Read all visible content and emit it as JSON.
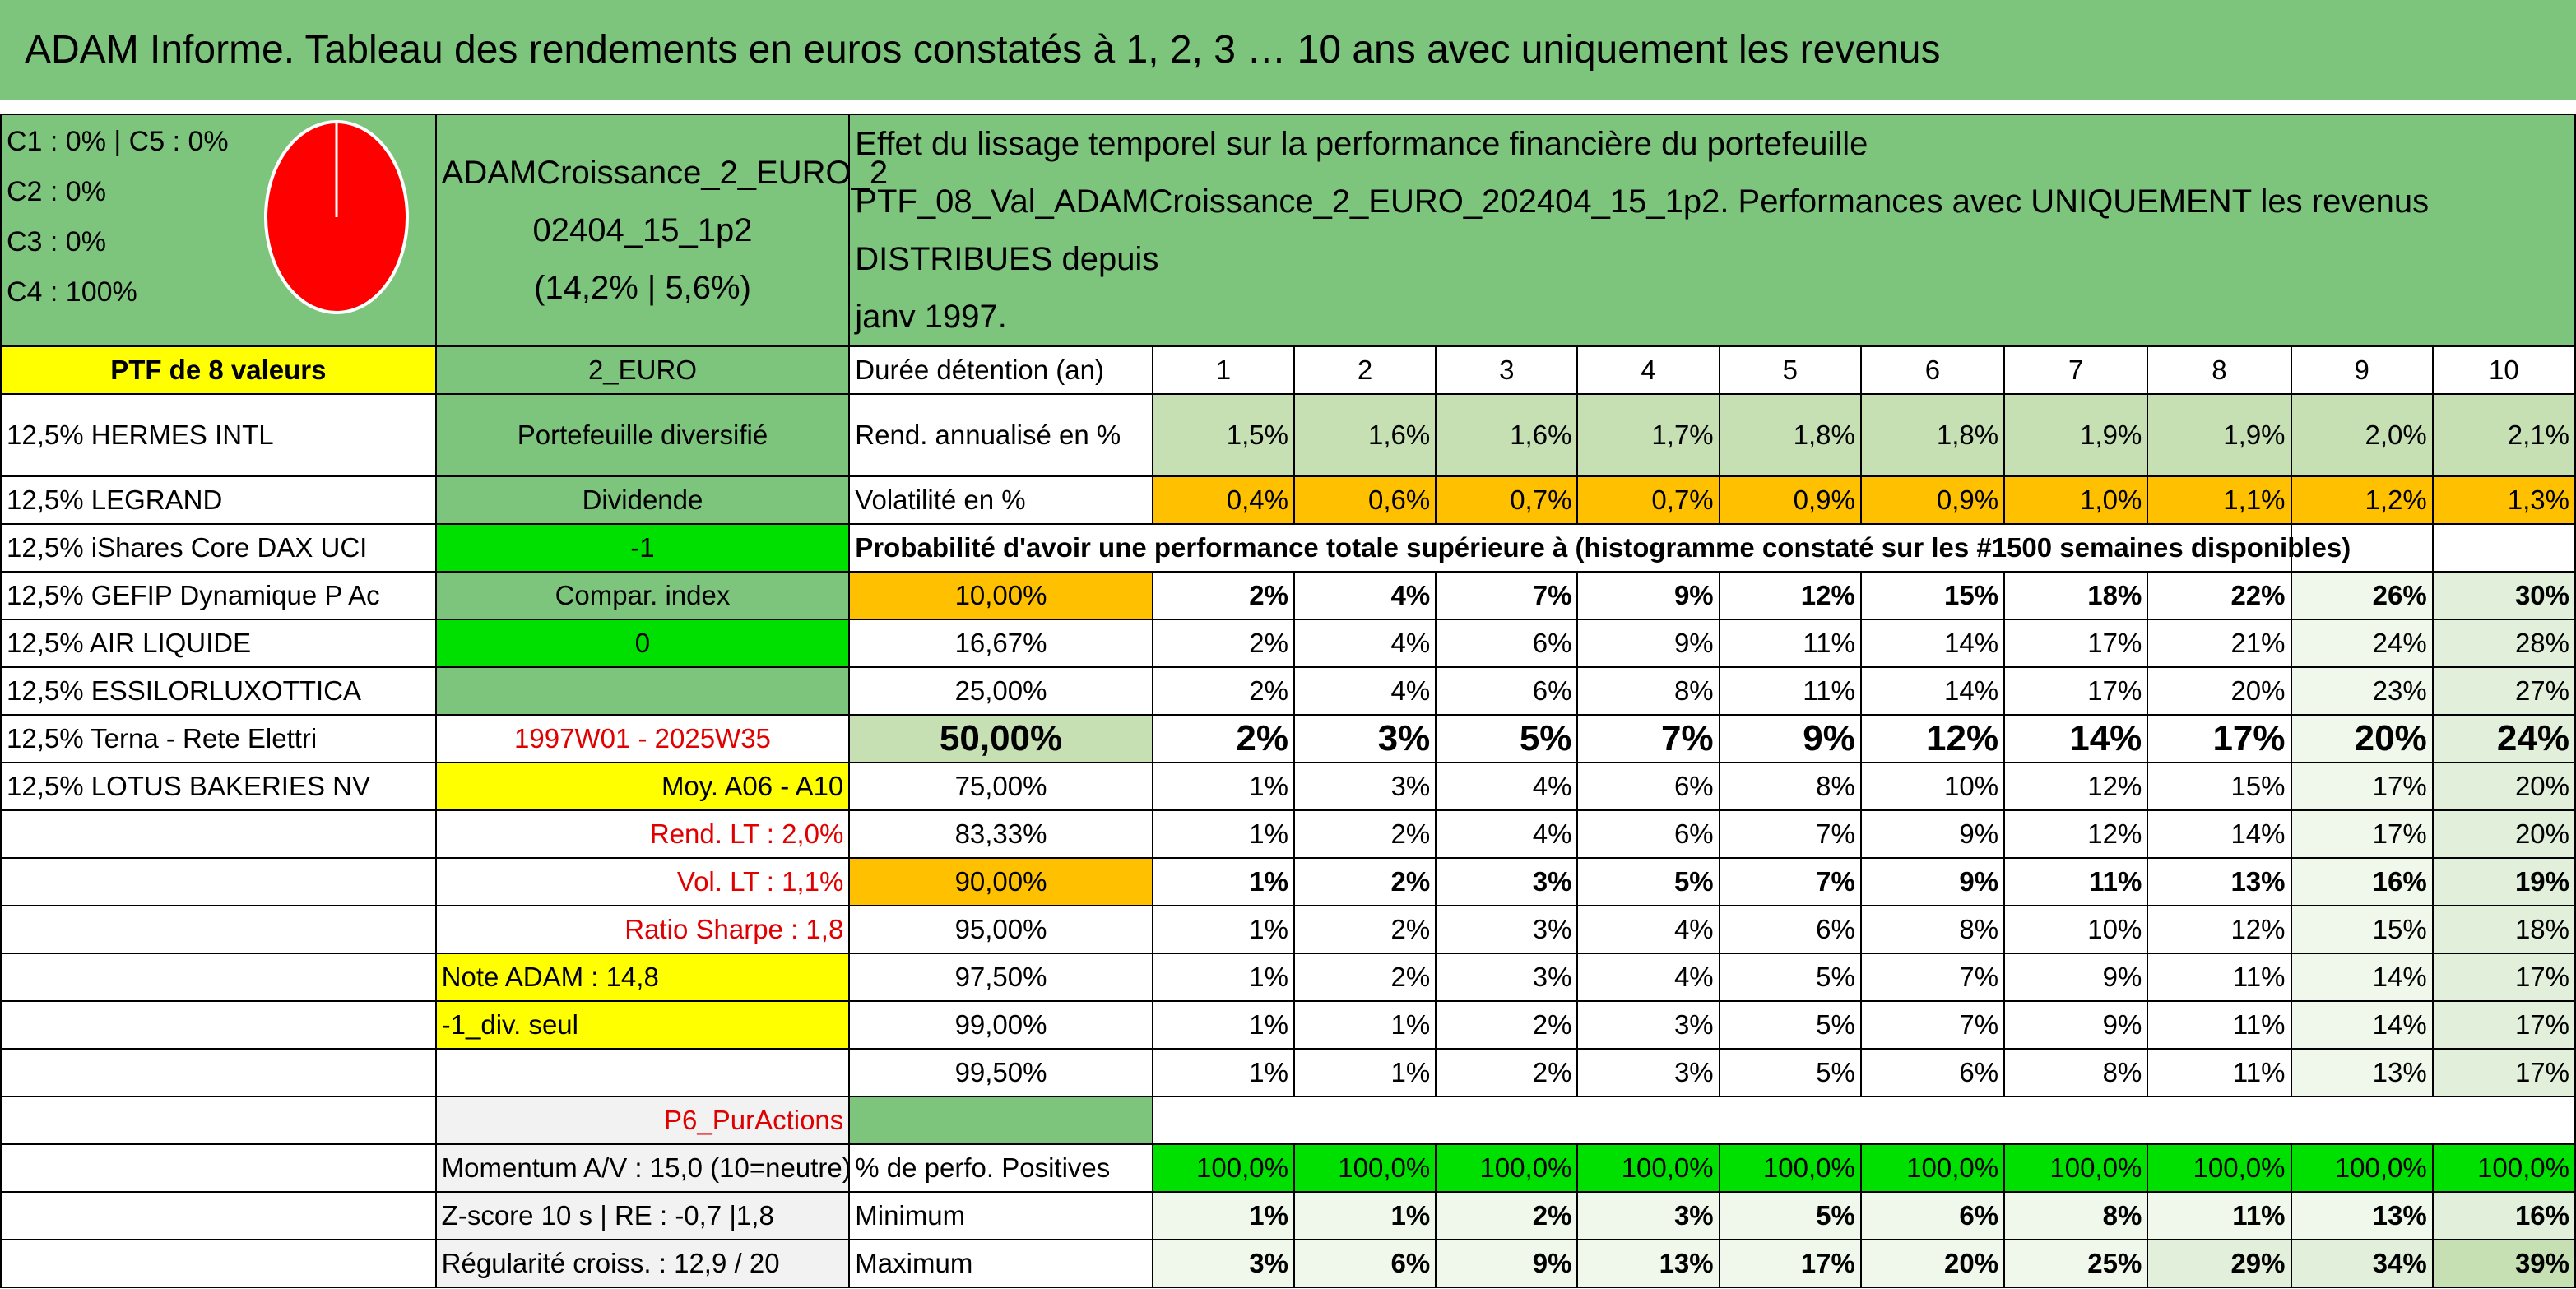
{
  "title": "ADAM Informe. Tableau des rendements en euros constatés à 1, 2, 3 … 10 ans avec uniquement les revenus",
  "allocation": {
    "lines": [
      "C1 : 0% | C5 : 0%",
      "C2 : 0%",
      "C3 : 0%",
      "C4 : 100%"
    ],
    "pie_colors": {
      "C4": "#ff0000"
    }
  },
  "fund": {
    "name_line1": "ADAMCroissance_2_EURO_2",
    "name_line2": "02404_15_1p2",
    "name_line3": "(14,2% | 5,6%)"
  },
  "description": {
    "line1": "Effet du lissage temporel sur la performance financière du portefeuille",
    "line2": "PTF_08_Val_ADAMCroissance_2_EURO_202404_15_1p2. Performances avec UNIQUEMENT les revenus DISTRIBUES depuis",
    "line3": "janv 1997."
  },
  "left_col": [
    "PTF de 8 valeurs",
    "12,5% HERMES INTL",
    "12,5% LEGRAND",
    "12,5% iShares Core DAX UCI",
    "12,5% GEFIP Dynamique P Ac",
    "12,5% AIR LIQUIDE",
    "12,5% ESSILORLUXOTTICA",
    "12,5% Terna - Rete Elettri",
    "12,5% LOTUS BAKERIES NV"
  ],
  "mid_col": {
    "currency": "2_EURO",
    "type": "Portefeuille diversifié",
    "dividende": "Dividende",
    "val1": "-1",
    "compar": "Compar. index",
    "val2": "0",
    "period": "1997W01 - 2025W35",
    "moy": "Moy. A06 - A10",
    "rend_lt": "Rend. LT : 2,0%",
    "vol_lt": "Vol. LT : 1,1%",
    "sharpe": "Ratio Sharpe : 1,8",
    "note": "Note ADAM : 14,8",
    "div_seul": "-1_div. seul",
    "pur": "P6_PurActions",
    "momentum": "Momentum A/V : 15,0 (10=neutre)",
    "zscore": "Z-score 10 s | RE : -0,7 |1,8",
    "regularite": "Régularité croiss. : 12,9 / 20"
  },
  "table": {
    "duree_label": "Durée détention (an)",
    "years": [
      "1",
      "2",
      "3",
      "4",
      "5",
      "6",
      "7",
      "8",
      "9",
      "10"
    ],
    "rend_label": "Rend. annualisé en %",
    "rend": [
      "1,5%",
      "1,6%",
      "1,6%",
      "1,7%",
      "1,8%",
      "1,8%",
      "1,9%",
      "1,9%",
      "2,0%",
      "2,1%"
    ],
    "vol_label": "Volatilité en %",
    "vol": [
      "0,4%",
      "0,6%",
      "0,7%",
      "0,7%",
      "0,9%",
      "0,9%",
      "1,0%",
      "1,1%",
      "1,2%",
      "1,3%"
    ],
    "proba_label": "Probabilité d'avoir une performance totale supérieure à (histogramme constaté sur les #1500 semaines disponibles)",
    "quantiles": [
      {
        "p": "10,00%",
        "v": [
          "2%",
          "4%",
          "7%",
          "9%",
          "12%",
          "15%",
          "18%",
          "22%",
          "26%",
          "30%"
        ]
      },
      {
        "p": "16,67%",
        "v": [
          "2%",
          "4%",
          "6%",
          "9%",
          "11%",
          "14%",
          "17%",
          "21%",
          "24%",
          "28%"
        ]
      },
      {
        "p": "25,00%",
        "v": [
          "2%",
          "4%",
          "6%",
          "8%",
          "11%",
          "14%",
          "17%",
          "20%",
          "23%",
          "27%"
        ]
      },
      {
        "p": "50,00%",
        "v": [
          "2%",
          "3%",
          "5%",
          "7%",
          "9%",
          "12%",
          "14%",
          "17%",
          "20%",
          "24%"
        ]
      },
      {
        "p": "75,00%",
        "v": [
          "1%",
          "3%",
          "4%",
          "6%",
          "8%",
          "10%",
          "12%",
          "15%",
          "17%",
          "20%"
        ]
      },
      {
        "p": "83,33%",
        "v": [
          "1%",
          "2%",
          "4%",
          "6%",
          "7%",
          "9%",
          "12%",
          "14%",
          "17%",
          "20%"
        ]
      },
      {
        "p": "90,00%",
        "v": [
          "1%",
          "2%",
          "3%",
          "5%",
          "7%",
          "9%",
          "11%",
          "13%",
          "16%",
          "19%"
        ]
      },
      {
        "p": "95,00%",
        "v": [
          "1%",
          "2%",
          "3%",
          "4%",
          "6%",
          "8%",
          "10%",
          "12%",
          "15%",
          "18%"
        ]
      },
      {
        "p": "97,50%",
        "v": [
          "1%",
          "2%",
          "3%",
          "4%",
          "5%",
          "7%",
          "9%",
          "11%",
          "14%",
          "17%"
        ]
      },
      {
        "p": "99,00%",
        "v": [
          "1%",
          "1%",
          "2%",
          "3%",
          "5%",
          "7%",
          "9%",
          "11%",
          "14%",
          "17%"
        ]
      },
      {
        "p": "99,50%",
        "v": [
          "1%",
          "1%",
          "2%",
          "3%",
          "5%",
          "6%",
          "8%",
          "11%",
          "13%",
          "17%"
        ]
      }
    ],
    "pos_label": "% de perfo. Positives",
    "pos": [
      "100,0%",
      "100,0%",
      "100,0%",
      "100,0%",
      "100,0%",
      "100,0%",
      "100,0%",
      "100,0%",
      "100,0%",
      "100,0%"
    ],
    "min_label": "Minimum",
    "min": [
      "1%",
      "1%",
      "2%",
      "3%",
      "5%",
      "6%",
      "8%",
      "11%",
      "13%",
      "16%"
    ],
    "max_label": "Maximum",
    "max": [
      "3%",
      "6%",
      "9%",
      "13%",
      "17%",
      "20%",
      "25%",
      "29%",
      "34%",
      "39%"
    ]
  }
}
